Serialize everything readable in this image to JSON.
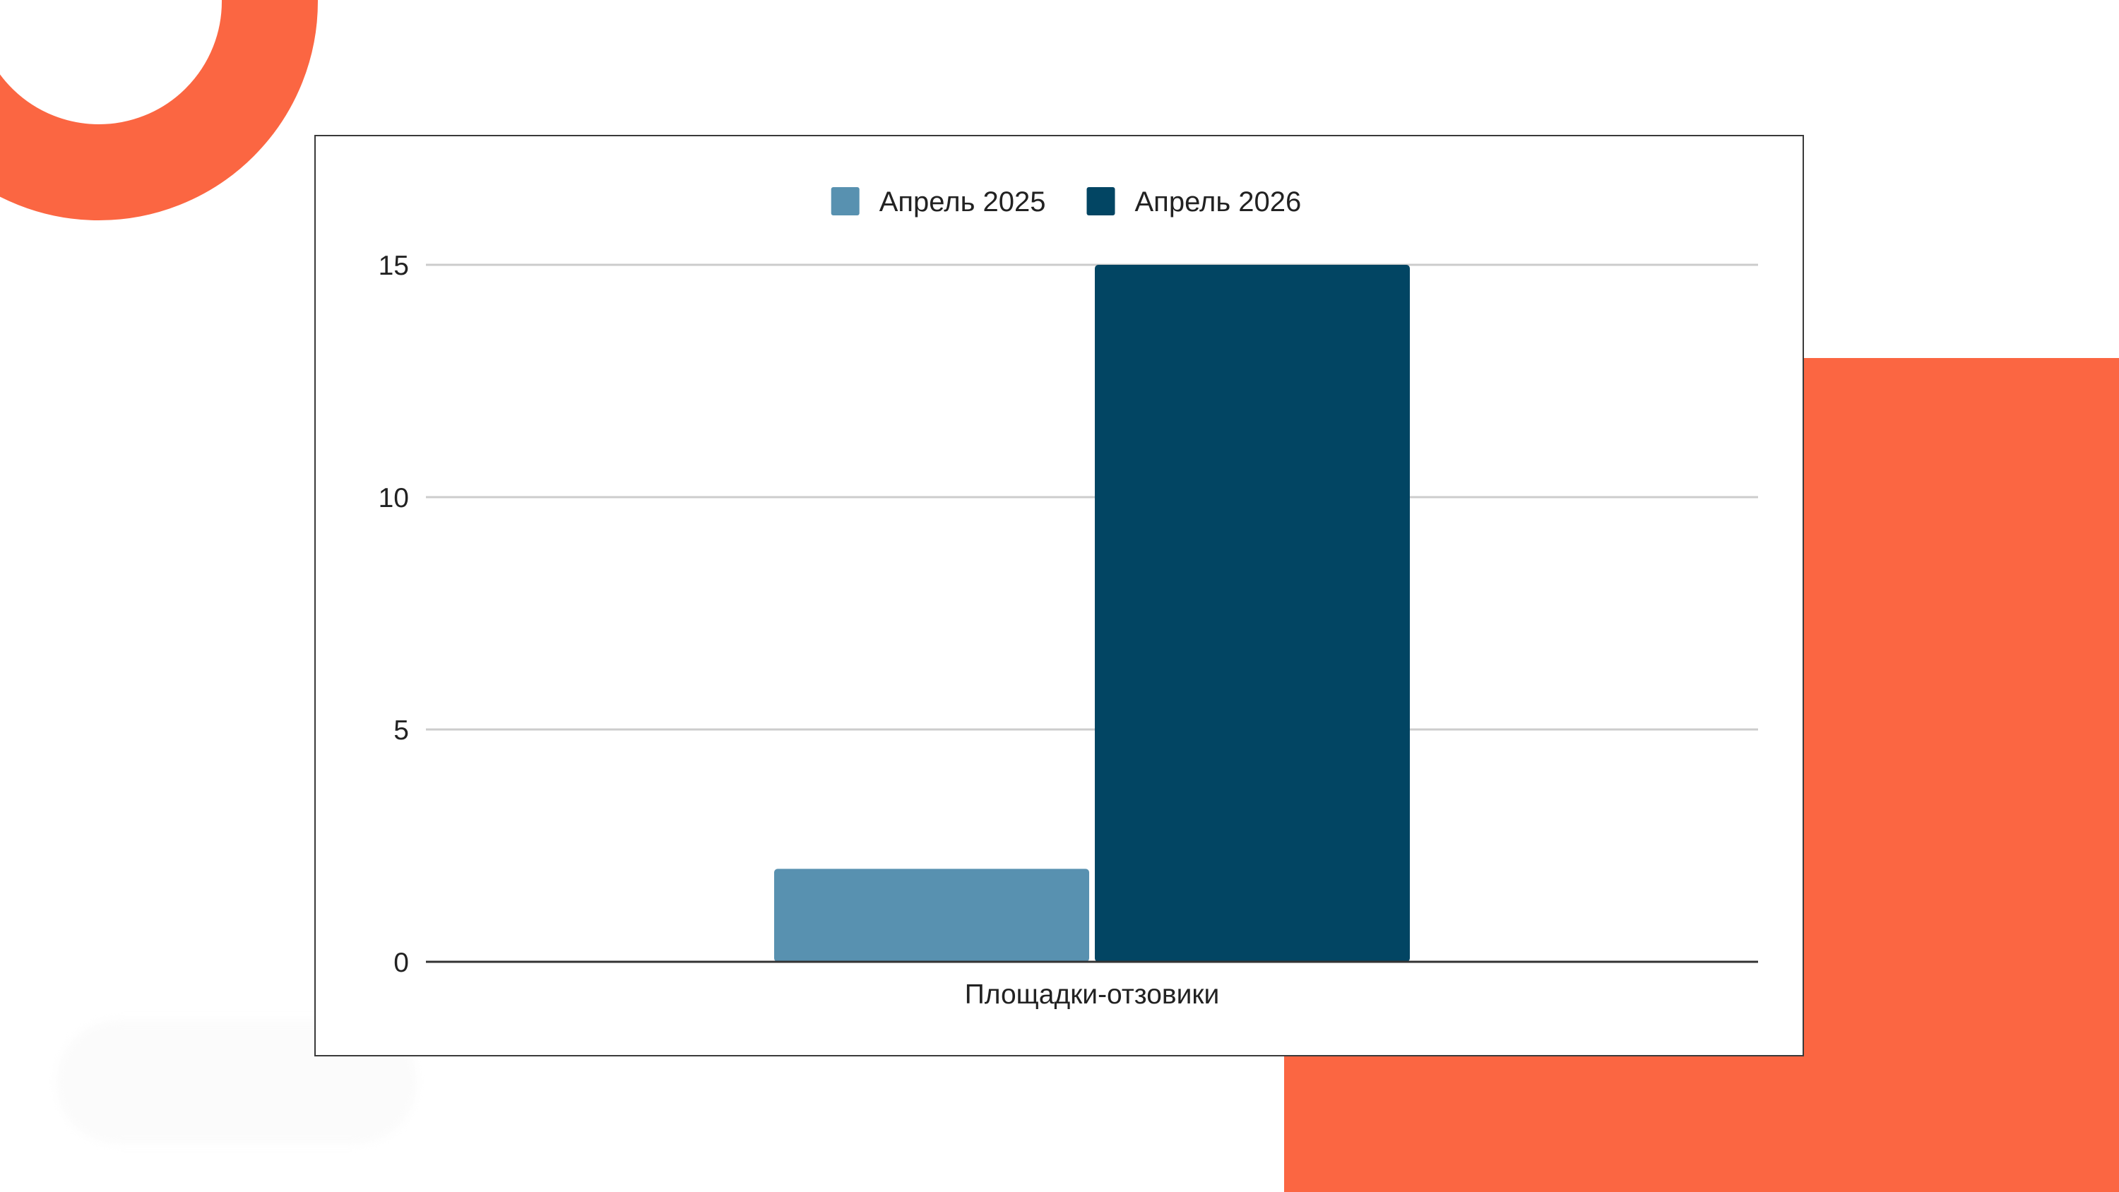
{
  "theme": {
    "accent": "#fb6642",
    "series_colors": [
      "#5891b0",
      "#024563"
    ],
    "gridline_color": "#cccccc",
    "axis_color": "#333333"
  },
  "chart_data": {
    "type": "bar",
    "categories": [
      "Площадки-отзовики"
    ],
    "series": [
      {
        "name": "Апрель 2025",
        "values": [
          2
        ]
      },
      {
        "name": "Апрель 2026",
        "values": [
          15
        ]
      }
    ],
    "ylim": [
      0,
      15
    ],
    "yticks": [
      0,
      5,
      10,
      15
    ],
    "grid": true,
    "legend_position": "top-center"
  }
}
